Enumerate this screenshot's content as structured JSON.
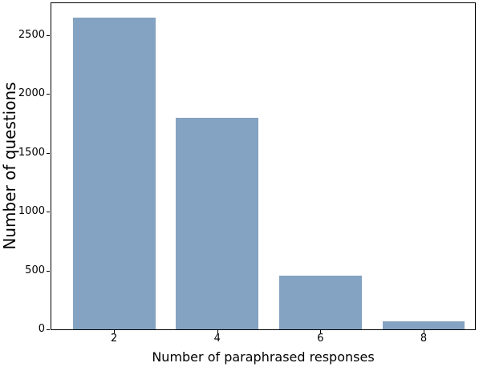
{
  "figure": {
    "background_color": "#ffffff",
    "spine_color": "#000000",
    "text_color": "#000000"
  },
  "chart_data": {
    "type": "bar",
    "title": "",
    "xlabel": "Number of paraphrased responses",
    "ylabel": "Number of questions",
    "categories": [
      2,
      4,
      6,
      8
    ],
    "values": [
      2650,
      1800,
      460,
      65
    ],
    "bar_width_units": 1.6,
    "bar_color": "#84a2c1",
    "xlim": [
      0.77,
      9.01
    ],
    "ylim": [
      0,
      2780
    ],
    "xticks": [
      "2",
      "4",
      "6",
      "8"
    ],
    "yticks": [
      "0",
      "500",
      "1000",
      "1500",
      "2000",
      "2500"
    ],
    "grid": false,
    "legend_position": "none"
  }
}
